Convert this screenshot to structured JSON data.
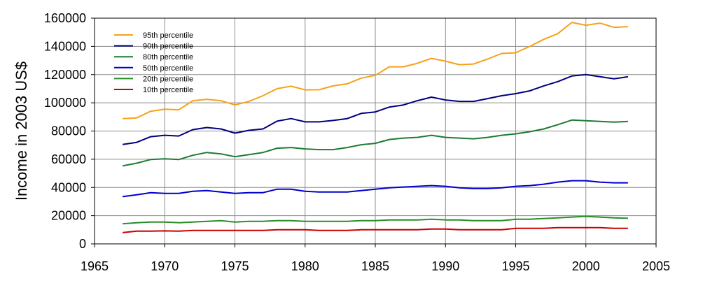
{
  "chart_data": {
    "type": "line",
    "title": "",
    "xlabel": "",
    "ylabel": "Income in 2003 US$",
    "xlim": [
      1965,
      2005
    ],
    "ylim": [
      0,
      160000
    ],
    "xticks": [
      1965,
      1970,
      1975,
      1980,
      1985,
      1990,
      1995,
      2000,
      2005
    ],
    "yticks": [
      0,
      20000,
      40000,
      60000,
      80000,
      100000,
      120000,
      140000,
      160000
    ],
    "grid": true,
    "legend_position": "top-left",
    "x": [
      1967,
      1968,
      1969,
      1970,
      1971,
      1972,
      1973,
      1974,
      1975,
      1976,
      1977,
      1978,
      1979,
      1980,
      1981,
      1982,
      1983,
      1984,
      1985,
      1986,
      1987,
      1988,
      1989,
      1990,
      1991,
      1992,
      1993,
      1994,
      1995,
      1996,
      1997,
      1998,
      1999,
      2000,
      2001,
      2002,
      2003
    ],
    "series": [
      {
        "name": "95th percentile",
        "color": "#f7a11a",
        "values": [
          88800,
          89300,
          94000,
          95500,
          95000,
          101500,
          102500,
          101500,
          98500,
          101000,
          105000,
          110000,
          111800,
          109200,
          109300,
          112000,
          113500,
          117500,
          119500,
          125500,
          125500,
          128000,
          131500,
          129500,
          127000,
          127500,
          131000,
          135000,
          135500,
          140000,
          145000,
          149000,
          157000,
          155000,
          156500,
          153500,
          154000
        ]
      },
      {
        "name": "90th percentile",
        "color": "#00007f",
        "values": [
          70500,
          72000,
          76000,
          77000,
          76500,
          81000,
          82500,
          81500,
          78500,
          80500,
          81500,
          87000,
          88800,
          86500,
          86500,
          87500,
          88800,
          92500,
          93500,
          97000,
          98500,
          101500,
          104000,
          102000,
          101000,
          101000,
          103000,
          105000,
          106500,
          108500,
          112000,
          115000,
          119000,
          120000,
          118500,
          117000,
          118500
        ]
      },
      {
        "name": "80th percentile",
        "color": "#1e7b35",
        "values": [
          55300,
          57200,
          59800,
          60300,
          59800,
          62800,
          64800,
          63800,
          61800,
          63300,
          64800,
          67800,
          68300,
          67300,
          66800,
          66800,
          68300,
          70300,
          71300,
          74000,
          75000,
          75500,
          77000,
          75500,
          75000,
          74500,
          75500,
          77000,
          78000,
          79500,
          81500,
          84500,
          87800,
          87300,
          86800,
          86300,
          86800
        ]
      },
      {
        "name": "50th percentile",
        "color": "#0000cc",
        "values": [
          33500,
          34800,
          36300,
          35800,
          35800,
          37300,
          37800,
          36800,
          35800,
          36300,
          36300,
          38800,
          38800,
          37300,
          36800,
          36800,
          36800,
          37800,
          38800,
          39800,
          40300,
          40800,
          41300,
          40800,
          39800,
          39300,
          39300,
          39800,
          40800,
          41300,
          42300,
          43800,
          44800,
          44800,
          43800,
          43300,
          43300
        ]
      },
      {
        "name": "20th percentile",
        "color": "#2a8d2a",
        "values": [
          14200,
          15000,
          15500,
          15500,
          15000,
          15500,
          16000,
          16500,
          15500,
          16000,
          16000,
          16500,
          16500,
          16000,
          16000,
          16000,
          16000,
          16500,
          16500,
          17000,
          17000,
          17000,
          17500,
          17000,
          17000,
          16500,
          16500,
          16500,
          17500,
          17500,
          18000,
          18500,
          19000,
          19500,
          19000,
          18500,
          18200
        ]
      },
      {
        "name": "10th percentile",
        "color": "#cc0000",
        "values": [
          8000,
          9000,
          9000,
          9200,
          9000,
          9500,
          9500,
          9500,
          9500,
          9500,
          9500,
          10000,
          10000,
          10000,
          9500,
          9500,
          9500,
          10000,
          10000,
          10000,
          10000,
          10000,
          10500,
          10500,
          10000,
          10000,
          10000,
          10000,
          11000,
          11000,
          11000,
          11500,
          11500,
          11500,
          11500,
          11000,
          11000
        ]
      }
    ]
  }
}
